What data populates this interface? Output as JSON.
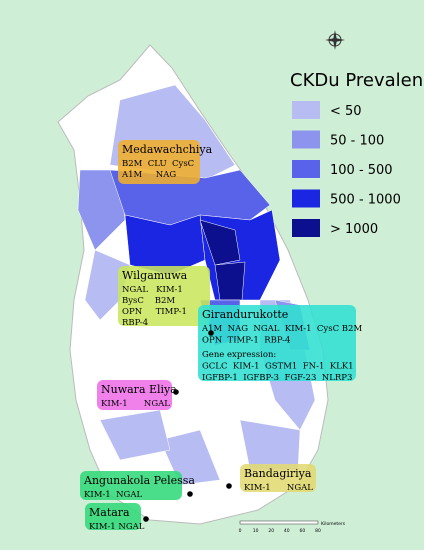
{
  "legend": {
    "title": "CKDu Prevalence",
    "items": [
      {
        "label": "< 50",
        "color": "#b7bcf2"
      },
      {
        "label": "50 - 100",
        "color": "#8c94ee"
      },
      {
        "label": "100 - 500",
        "color": "#5863ea"
      },
      {
        "label": "500 - 1000",
        "color": "#1b26e2"
      },
      {
        "label": "> 1000",
        "color": "#0c108e"
      }
    ]
  },
  "sites": [
    {
      "name": "Medawachchiya",
      "color": "#f0ae2c",
      "lines": [
        "B2M  CLU  CysC",
        "A1M     NAG"
      ]
    },
    {
      "name": "Wilgamuwa",
      "color": "#c9e65c",
      "lines": [
        "NGAL   KIM-1",
        "BysC    B2M",
        "OPN     TIMP-1",
        "RBP-4"
      ]
    },
    {
      "name": "Girandurukotte",
      "color": "#30e0d2",
      "lines": [
        "A1M  NAG  NGAL  KIM-1  CysC B2M",
        "OPN  TIMP-1  RBP-4",
        "Gene expression:",
        "GCLC  KIM-1  GSTM1  FN-1  KLK1",
        "IGFBP-1  IGFBP-3  FGF-23  NLRP3"
      ]
    },
    {
      "name": "Nuwara Eliya",
      "color": "#ee70e8",
      "lines": [
        "KIM-1      NGAL"
      ]
    },
    {
      "name": "Angunakola Pelessa",
      "color": "#32d97a",
      "lines": [
        "KIM-1  NGAL"
      ]
    },
    {
      "name": "Bandagiriya",
      "color": "#e2da72",
      "lines": [
        "KIM-1      NGAL"
      ]
    },
    {
      "name": "Matara",
      "color": "#32d97a",
      "lines": [
        "KIM-1 NGAL"
      ]
    }
  ],
  "scale_bar": {
    "ticks": [
      "0",
      "10",
      "20",
      "40",
      "60",
      "80"
    ],
    "unit": "Kilometers"
  }
}
